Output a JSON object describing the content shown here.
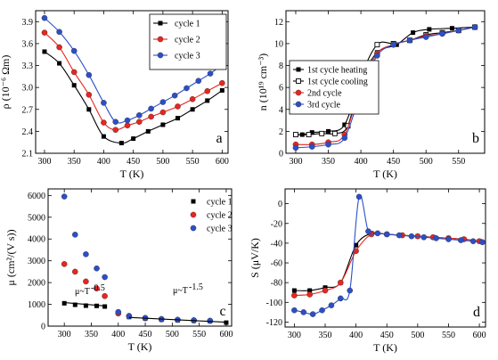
{
  "colors": {
    "cycle1": "#000000",
    "cycle2": "#e8251f",
    "cycle3": "#2b4fc9",
    "line": "#000000"
  },
  "chart_data": [
    {
      "panel_label": "a",
      "type": "line",
      "xlabel": "T (K)",
      "ylabel": "ρ (10⁻⁶ Ωm)",
      "xlim": [
        285,
        610
      ],
      "ylim": [
        2.1,
        4.05
      ],
      "xticks": [
        300,
        350,
        400,
        450,
        500,
        550,
        600
      ],
      "yticks": [
        2.1,
        2.4,
        2.7,
        3.0,
        3.3,
        3.6,
        3.9
      ],
      "legend_position": "top-right",
      "series": [
        {
          "name": "cycle 1",
          "marker": "square",
          "color": "#000000",
          "x": [
            300,
            325,
            350,
            375,
            400,
            430,
            450,
            475,
            500,
            525,
            550,
            575,
            600
          ],
          "y": [
            3.49,
            3.33,
            3.03,
            2.7,
            2.33,
            2.24,
            2.3,
            2.4,
            2.49,
            2.58,
            2.7,
            2.82,
            2.96
          ]
        },
        {
          "name": "cycle 2",
          "marker": "circle",
          "color": "#e8251f",
          "x": [
            300,
            325,
            350,
            375,
            400,
            420,
            440,
            460,
            480,
            500,
            525,
            550,
            575,
            600
          ],
          "y": [
            3.75,
            3.55,
            3.21,
            2.9,
            2.52,
            2.42,
            2.48,
            2.53,
            2.6,
            2.66,
            2.74,
            2.84,
            2.95,
            3.06
          ]
        },
        {
          "name": "cycle 3",
          "marker": "circle",
          "color": "#2b4fc9",
          "x": [
            300,
            325,
            350,
            375,
            400,
            420,
            440,
            460,
            480,
            500,
            520,
            540,
            560,
            580,
            600
          ],
          "y": [
            3.95,
            3.76,
            3.5,
            3.17,
            2.79,
            2.53,
            2.55,
            2.62,
            2.71,
            2.8,
            2.89,
            2.99,
            3.09,
            3.19,
            3.31
          ]
        }
      ]
    },
    {
      "panel_label": "b",
      "type": "line",
      "xlabel": "T (K)",
      "ylabel": "n (10¹⁹ cm⁻³)",
      "xlim": [
        285,
        590
      ],
      "ylim": [
        0,
        13
      ],
      "xticks": [
        300,
        350,
        400,
        450,
        500,
        550
      ],
      "yticks": [
        0,
        2,
        4,
        6,
        8,
        10,
        12
      ],
      "legend_position": "left",
      "series": [
        {
          "name": "1st cycle  heating",
          "marker": "square",
          "color": "#000000",
          "x": [
            300,
            310,
            325,
            350,
            375,
            400,
            425,
            455,
            480,
            505,
            540,
            575
          ],
          "y": [
            1.7,
            1.7,
            1.9,
            2.0,
            2.6,
            6.6,
            9.2,
            9.9,
            11.0,
            11.3,
            11.4,
            11.5
          ]
        },
        {
          "name": "1st cycle  cooling",
          "marker": "open-square",
          "color": "#000000",
          "x": [
            300,
            320,
            340,
            360,
            380,
            400,
            425,
            450,
            475,
            500,
            525,
            550,
            575
          ],
          "y": [
            1.7,
            1.7,
            1.8,
            1.8,
            2.5,
            6.9,
            9.9,
            10.0,
            10.3,
            10.8,
            11.0,
            11.2,
            11.5
          ]
        },
        {
          "name": "2nd cycle",
          "marker": "circle",
          "color": "#e8251f",
          "x": [
            300,
            325,
            350,
            375,
            400,
            425,
            450,
            475,
            500,
            525,
            550,
            575
          ],
          "y": [
            0.8,
            0.8,
            1.0,
            1.7,
            6.0,
            9.1,
            9.9,
            10.3,
            10.7,
            10.9,
            11.2,
            11.5
          ]
        },
        {
          "name": "3rd cycle",
          "marker": "circle",
          "color": "#2b4fc9",
          "x": [
            300,
            325,
            350,
            375,
            400,
            425,
            450,
            475,
            500,
            525,
            550,
            575
          ],
          "y": [
            0.5,
            0.6,
            0.8,
            1.4,
            5.5,
            8.9,
            9.9,
            10.3,
            10.6,
            10.9,
            11.2,
            11.5
          ]
        }
      ]
    },
    {
      "panel_label": "c",
      "type": "scatter",
      "xlabel": "T (K)",
      "ylabel": "μ (cm²/(V s))",
      "xlim": [
        270,
        610
      ],
      "ylim": [
        0,
        6300
      ],
      "xticks": [
        300,
        350,
        400,
        450,
        500,
        550,
        600
      ],
      "yticks": [
        0,
        1000,
        2000,
        3000,
        4000,
        5000,
        6000
      ],
      "legend_position": "top-right",
      "annotations": [
        "μ~T",
        "-0.5",
        "μ~T",
        "-1.5"
      ],
      "series": [
        {
          "name": "cycle 1",
          "marker": "square",
          "color": "#000000",
          "x": [
            300,
            320,
            340,
            360,
            375,
            420,
            450,
            480,
            510,
            540,
            570,
            600
          ],
          "y": [
            1050,
            980,
            940,
            930,
            900,
            420,
            350,
            300,
            270,
            250,
            230,
            160
          ]
        },
        {
          "name": "cycle 2",
          "marker": "circle",
          "color": "#e8251f",
          "x": [
            300,
            320,
            340,
            360,
            375,
            400,
            420,
            450,
            480,
            510,
            540,
            570
          ],
          "y": [
            2850,
            2500,
            2050,
            1730,
            1380,
            580,
            470,
            360,
            310,
            290,
            260,
            240
          ]
        },
        {
          "name": "cycle 3",
          "marker": "circle",
          "color": "#2b4fc9",
          "x": [
            300,
            320,
            340,
            360,
            375,
            400,
            420,
            450,
            480,
            510,
            540,
            570
          ],
          "y": [
            5950,
            4200,
            3300,
            2650,
            2250,
            650,
            450,
            380,
            330,
            290,
            270,
            250
          ]
        }
      ],
      "fits": [
        {
          "x": [
            300,
            375
          ],
          "y": [
            1080,
            930
          ]
        },
        {
          "x": [
            420,
            600
          ],
          "y": [
            400,
            180
          ]
        }
      ]
    },
    {
      "panel_label": "d",
      "type": "line",
      "xlabel": "T (K)",
      "ylabel": "S (μV/K)",
      "xlim": [
        285,
        610
      ],
      "ylim": [
        -125,
        15
      ],
      "xticks": [
        300,
        350,
        400,
        450,
        500,
        550,
        600
      ],
      "yticks": [
        -120,
        -100,
        -80,
        -60,
        -40,
        -20,
        0
      ],
      "series": [
        {
          "name": "",
          "marker": "square",
          "color": "#000000",
          "x": [
            300,
            325,
            350,
            375,
            400,
            425,
            450,
            475,
            500,
            525,
            550,
            575,
            600
          ],
          "y": [
            -88,
            -88,
            -85,
            -80,
            -42,
            -30,
            -31,
            -32,
            -33,
            -34,
            -35,
            -36,
            -38
          ]
        },
        {
          "name": "",
          "marker": "circle",
          "color": "#e8251f",
          "x": [
            300,
            325,
            350,
            375,
            400,
            425,
            450,
            475,
            500,
            525,
            550,
            575,
            600
          ],
          "y": [
            -93,
            -92,
            -88,
            -80,
            -48,
            -31,
            -31,
            -32,
            -33,
            -34,
            -35,
            -36,
            -38
          ]
        },
        {
          "name": "",
          "marker": "circle",
          "color": "#2b4fc9",
          "x": [
            300,
            315,
            330,
            345,
            360,
            375,
            390,
            405,
            420,
            435,
            450,
            470,
            490,
            510,
            530,
            550,
            570,
            590,
            605
          ],
          "y": [
            -108,
            -110,
            -112,
            -108,
            -103,
            -96,
            -88,
            7,
            -28,
            -30,
            -31,
            -32,
            -33,
            -34,
            -35,
            -36,
            -37,
            -38,
            -39
          ]
        }
      ]
    }
  ]
}
